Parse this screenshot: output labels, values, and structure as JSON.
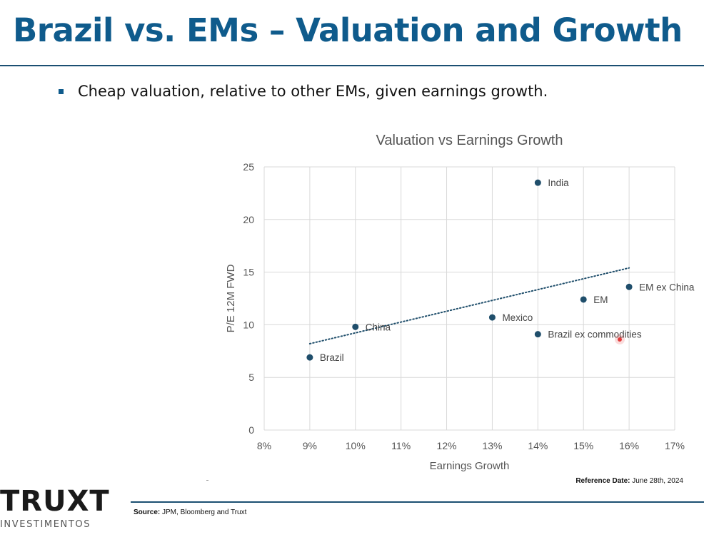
{
  "slide": {
    "title": "Brazil vs. EMs – Valuation and Growth",
    "bullet": "Cheap valuation, relative to other EMs, given earnings growth."
  },
  "footer": {
    "reference_label": "Reference Date:",
    "reference_value": "June 28th, 2024",
    "source_label": "Source:",
    "source_value": "JPM, Bloomberg and Truxt",
    "logo_main": "TRUXT",
    "logo_sub": "INVESTIMENTOS"
  },
  "colors": {
    "title": "#0f5b8c",
    "rule": "#1b4f72",
    "marker": "#1f4e6b",
    "cursor": "#e23b3b"
  },
  "chart_data": {
    "type": "scatter",
    "title": "Valuation vs Earnings Growth",
    "xlabel": "Earnings Growth",
    "ylabel": "P/E 12M FWD",
    "xlim": [
      8,
      17
    ],
    "ylim": [
      0,
      25
    ],
    "xticks": [
      "8%",
      "9%",
      "10%",
      "11%",
      "12%",
      "13%",
      "14%",
      "15%",
      "16%",
      "17%"
    ],
    "yticks": [
      "0",
      "5",
      "10",
      "15",
      "20",
      "25"
    ],
    "grid": true,
    "points": [
      {
        "label": "Brazil",
        "x": 9,
        "y": 6.9
      },
      {
        "label": "China",
        "x": 10,
        "y": 9.8
      },
      {
        "label": "Mexico",
        "x": 13,
        "y": 10.7
      },
      {
        "label": "India",
        "x": 14,
        "y": 23.5
      },
      {
        "label": "Brazil ex commodities",
        "x": 14,
        "y": 9.1
      },
      {
        "label": "EM",
        "x": 15,
        "y": 12.4
      },
      {
        "label": "EM ex China",
        "x": 16,
        "y": 13.6
      }
    ],
    "trendline": {
      "style": "dotted",
      "x": [
        9,
        16
      ],
      "y": [
        8.2,
        15.4
      ]
    }
  }
}
